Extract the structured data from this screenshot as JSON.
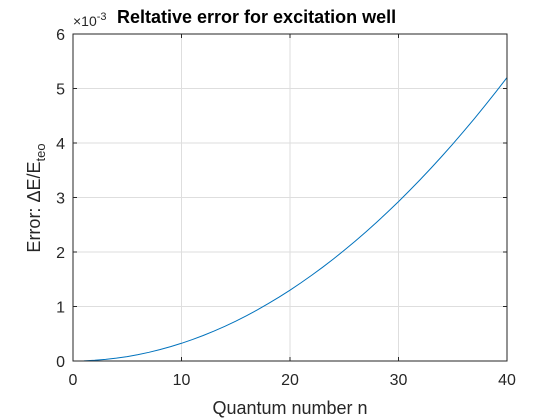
{
  "chart_data": {
    "type": "line",
    "title": "Reltative error for excitation well",
    "xlabel": "Quantum number n",
    "ylabel_prefix": "Error: ",
    "ylabel_delta": "Δ",
    "ylabel_main": "E/E",
    "ylabel_sub": "teo",
    "y_multiplier_base": "×10",
    "y_multiplier_exp": "-3",
    "xlim": [
      0,
      40
    ],
    "ylim": [
      0,
      6
    ],
    "y_scale": 0.001,
    "xticks": [
      0,
      10,
      20,
      30,
      40
    ],
    "yticks": [
      0,
      1,
      2,
      3,
      4,
      5,
      6
    ],
    "grid": true,
    "series": [
      {
        "color": "#0072BD",
        "x": [
          1,
          2,
          3,
          4,
          5,
          6,
          7,
          8,
          9,
          10,
          11,
          12,
          13,
          14,
          15,
          16,
          17,
          18,
          19,
          20,
          21,
          22,
          23,
          24,
          25,
          26,
          27,
          28,
          29,
          30,
          31,
          32,
          33,
          34,
          35,
          36,
          37,
          38,
          39,
          40
        ],
        "y": [
          3.3e-06,
          1.3e-05,
          2.93e-05,
          5.2e-05,
          8.13e-05,
          0.000117,
          0.0001593,
          0.000208,
          0.0002633,
          0.000325,
          0.0003933,
          0.000468,
          0.0005493,
          0.000637,
          0.0007313,
          0.000832,
          0.0009393,
          0.001053,
          0.0011733,
          0.0013,
          0.0014333,
          0.001573,
          0.0017193,
          0.001872,
          0.0020313,
          0.002197,
          0.0023693,
          0.002548,
          0.0027333,
          0.002925,
          0.0031233,
          0.003328,
          0.0035393,
          0.003757,
          0.0039813,
          0.004212,
          0.0044493,
          0.004693,
          0.0049433,
          0.0052
        ]
      }
    ]
  }
}
